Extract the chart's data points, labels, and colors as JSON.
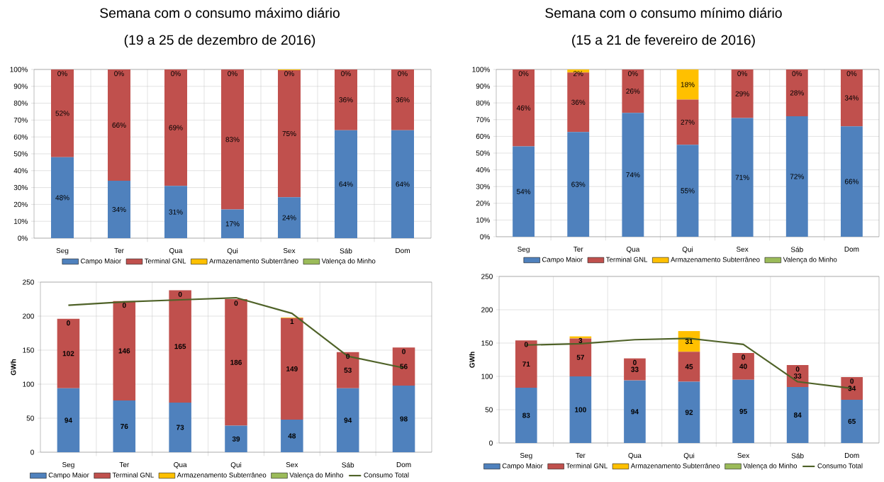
{
  "chart_data": [
    {
      "type": "bar",
      "stacked": true,
      "title": "Semana com o consumo máximo diário",
      "subtitle": "(19 a 25 de dezembro de 2016)",
      "categories": [
        "Seg",
        "Ter",
        "Qua",
        "Qui",
        "Sex",
        "Sáb",
        "Dom"
      ],
      "series": [
        {
          "name": "Campo Maior",
          "color": "#4f81bd",
          "values": [
            48,
            34,
            31,
            17,
            24.3,
            64,
            64
          ],
          "value_labels": [
            "48%",
            "34%",
            "31%",
            "17%",
            "24%",
            "64%",
            "64%"
          ]
        },
        {
          "name": "Terminal GNL",
          "color": "#c0504d",
          "values": [
            52,
            66,
            69,
            83,
            75.3,
            36,
            36
          ],
          "value_labels": [
            "52%",
            "66%",
            "69%",
            "83%",
            "75%",
            "36%",
            "36%"
          ]
        },
        {
          "name": "Armazenamento Subterrâneo",
          "color": "#ffc000",
          "values": [
            0,
            0,
            0,
            0,
            0.4,
            0,
            0
          ],
          "value_labels": [
            "0%",
            "0%",
            "0%",
            "0%",
            "0%",
            "0%",
            "0%"
          ]
        },
        {
          "name": "Valença do Minho",
          "color": "#9bbb59",
          "values": [
            0,
            0,
            0,
            0,
            0,
            0,
            0
          ]
        }
      ],
      "ylim": [
        0,
        100
      ],
      "yticks": [
        {
          "value": 0,
          "label": "0%"
        },
        {
          "value": 10,
          "label": "10%"
        },
        {
          "value": 20,
          "label": "20%"
        },
        {
          "value": 30,
          "label": "30%"
        },
        {
          "value": 40,
          "label": "40%"
        },
        {
          "value": 50,
          "label": "50%"
        },
        {
          "value": 60,
          "label": "60%"
        },
        {
          "value": 70,
          "label": "70%"
        },
        {
          "value": 80,
          "label": "80%"
        },
        {
          "value": 90,
          "label": "90%"
        },
        {
          "value": 100,
          "label": "100%"
        }
      ],
      "grid": true,
      "legend": "bottom"
    },
    {
      "type": "bar",
      "stacked": true,
      "title": "Semana com o consumo mínimo diário",
      "subtitle": "(15 a 21 de fevereiro de 2016)",
      "categories": [
        "Seg",
        "Ter",
        "Qua",
        "Qui",
        "Sex",
        "Sáb",
        "Dom"
      ],
      "series": [
        {
          "name": "Campo Maior",
          "color": "#4f81bd",
          "values": [
            54,
            62.6,
            74,
            55,
            71,
            72,
            66
          ],
          "value_labels": [
            "54%",
            "63%",
            "74%",
            "55%",
            "71%",
            "72%",
            "66%"
          ]
        },
        {
          "name": "Terminal GNL",
          "color": "#c0504d",
          "values": [
            46,
            35.6,
            26,
            27,
            29,
            28,
            34
          ],
          "value_labels": [
            "46%",
            "36%",
            "26%",
            "27%",
            "29%",
            "28%",
            "34%"
          ]
        },
        {
          "name": "Armazenamento Subterrâneo",
          "color": "#ffc000",
          "values": [
            0,
            1.8,
            0,
            18,
            0,
            0,
            0
          ],
          "value_labels": [
            "0%",
            "2%",
            "0%",
            "18%",
            "0%",
            "0%",
            "0%"
          ]
        },
        {
          "name": "Valença do Minho",
          "color": "#9bbb59",
          "values": [
            0,
            0,
            0,
            0,
            0,
            0,
            0
          ]
        }
      ],
      "ylim": [
        0,
        100
      ],
      "yticks": [
        {
          "value": 0,
          "label": "0%"
        },
        {
          "value": 10,
          "label": "10%"
        },
        {
          "value": 20,
          "label": "20%"
        },
        {
          "value": 30,
          "label": "30%"
        },
        {
          "value": 40,
          "label": "40%"
        },
        {
          "value": 50,
          "label": "50%"
        },
        {
          "value": 60,
          "label": "60%"
        },
        {
          "value": 70,
          "label": "70%"
        },
        {
          "value": 80,
          "label": "80%"
        },
        {
          "value": 90,
          "label": "90%"
        },
        {
          "value": 100,
          "label": "100%"
        }
      ],
      "grid": true,
      "legend": "bottom"
    },
    {
      "type": "bar",
      "stacked": true,
      "ylabel": "GWh",
      "categories": [
        "Seg",
        "Ter",
        "Qua",
        "Qui",
        "Sex",
        "Sáb",
        "Dom"
      ],
      "series": [
        {
          "name": "Campo Maior",
          "color": "#4f81bd",
          "values": [
            94,
            76,
            73,
            39,
            48,
            94,
            98
          ],
          "value_labels": [
            "94",
            "76",
            "73",
            "39",
            "48",
            "94",
            "98"
          ]
        },
        {
          "name": "Terminal GNL",
          "color": "#c0504d",
          "values": [
            102,
            146,
            165,
            186,
            149,
            53,
            56
          ],
          "value_labels": [
            "102",
            "146",
            "165",
            "186",
            "149",
            "53",
            "56"
          ]
        },
        {
          "name": "Armazenamento Subterrâneo",
          "color": "#ffc000",
          "values": [
            0,
            0,
            0,
            0,
            1,
            0,
            0
          ],
          "value_labels": [
            "0",
            "0",
            "0",
            "0",
            "1",
            "0",
            "0"
          ]
        },
        {
          "name": "Valença do Minho",
          "color": "#9bbb59",
          "values": [
            0,
            0,
            0,
            0,
            0,
            0,
            0
          ]
        },
        {
          "name": "Consumo Total",
          "type": "line",
          "color": "#4f6228",
          "values": [
            216,
            221,
            224,
            227,
            204,
            141,
            124
          ]
        }
      ],
      "ylim": [
        0,
        250
      ],
      "yticks": [
        0,
        50,
        100,
        150,
        200,
        250
      ],
      "grid": true,
      "legend": "bottom"
    },
    {
      "type": "bar",
      "stacked": true,
      "ylabel": "GWh",
      "categories": [
        "Seg",
        "Ter",
        "Qua",
        "Qui",
        "Sex",
        "Sáb",
        "Dom"
      ],
      "series": [
        {
          "name": "Campo Maior",
          "color": "#4f81bd",
          "values": [
            83,
            100,
            94,
            92,
            95,
            84,
            65
          ],
          "value_labels": [
            "83",
            "100",
            "94",
            "92",
            "95",
            "84",
            "65"
          ]
        },
        {
          "name": "Terminal GNL",
          "color": "#c0504d",
          "values": [
            71,
            57,
            33,
            45,
            40,
            33,
            34
          ],
          "value_labels": [
            "71",
            "57",
            "33",
            "45",
            "40",
            "33",
            "34"
          ]
        },
        {
          "name": "Armazenamento Subterrâneo",
          "color": "#ffc000",
          "values": [
            0,
            3,
            0,
            31,
            0,
            0,
            0
          ],
          "value_labels": [
            "0",
            "3",
            "0",
            "31",
            "0",
            "0",
            "0"
          ]
        },
        {
          "name": "Valença do Minho",
          "color": "#9bbb59",
          "values": [
            0,
            0,
            0,
            0,
            0,
            0,
            0
          ]
        },
        {
          "name": "Consumo Total",
          "type": "line",
          "color": "#4f6228",
          "values": [
            147,
            149,
            155,
            157,
            148,
            92,
            82
          ]
        }
      ],
      "ylim": [
        0,
        250
      ],
      "yticks": [
        0,
        50,
        100,
        150,
        200,
        250
      ],
      "grid": true,
      "legend": "bottom"
    }
  ]
}
